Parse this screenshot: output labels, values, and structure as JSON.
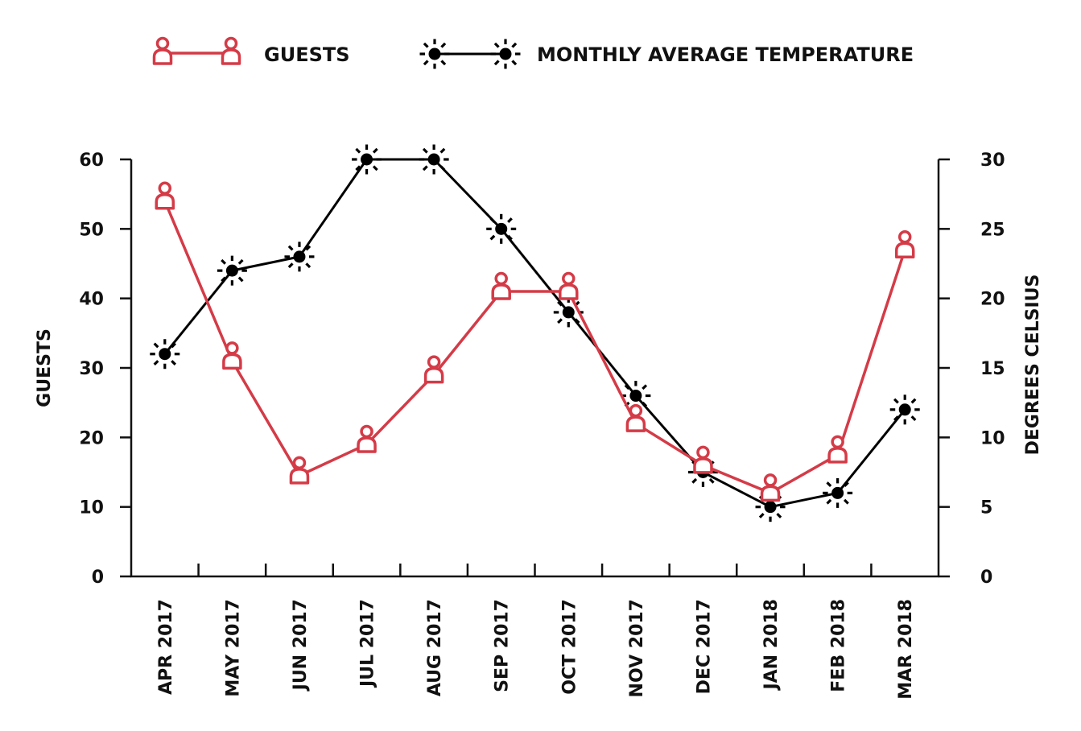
{
  "chart_data": {
    "type": "line",
    "categories": [
      "APR 2017",
      "MAY 2017",
      "JUN 2017",
      "JUL 2017",
      "AUG 2017",
      "SEP 2017",
      "OCT 2017",
      "NOV 2017",
      "DEC 2017",
      "JAN 2018",
      "FEB 2018",
      "MAR 2018"
    ],
    "series": [
      {
        "name": "GUESTS",
        "axis": "left",
        "color": "#d43b47",
        "marker": "person-icon",
        "values": [
          54,
          31,
          14.5,
          19,
          29,
          41,
          41,
          22,
          16,
          12,
          17.5,
          47
        ]
      },
      {
        "name": "MONTHLY AVERAGE TEMPERATURE",
        "axis": "right",
        "color": "#000000",
        "marker": "sun-icon",
        "values": [
          16,
          22,
          23,
          30,
          30,
          25,
          19,
          13,
          7.5,
          5,
          6,
          12
        ]
      }
    ],
    "ylabel": "GUESTS",
    "ylim": [
      0,
      60
    ],
    "yticks": [
      "0",
      "10",
      "20",
      "30",
      "40",
      "50",
      "60"
    ],
    "y2label": "DEGREES CELSIUS",
    "y2lim": [
      0,
      30
    ],
    "y2ticks": [
      "0",
      "5",
      "10",
      "15",
      "20",
      "25",
      "30"
    ],
    "xlabel": "",
    "legend_position": "top",
    "grid": false
  }
}
